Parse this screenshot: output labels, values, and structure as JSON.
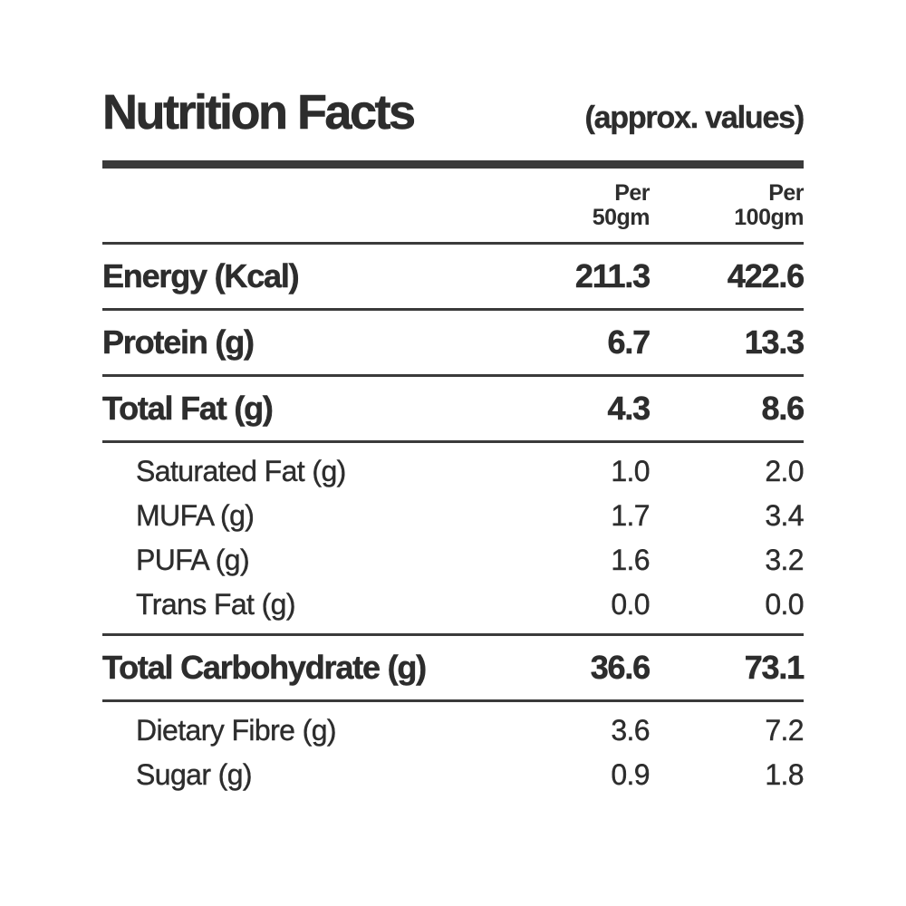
{
  "header": {
    "title": "Nutrition Facts",
    "subtitle": "(approx. values)"
  },
  "table": {
    "columns": [
      {
        "line1": "Per",
        "line2": "50gm"
      },
      {
        "line1": "Per",
        "line2": "100gm"
      }
    ],
    "rows": [
      {
        "label": "Energy (Kcal)",
        "per50": "211.3",
        "per100": "422.6",
        "style": "main",
        "rule_after": true
      },
      {
        "label": "Protein (g)",
        "per50": "6.7",
        "per100": "13.3",
        "style": "main",
        "rule_after": true
      },
      {
        "label": "Total Fat (g)",
        "per50": "4.3",
        "per100": "8.6",
        "style": "main",
        "rule_after": true
      },
      {
        "label": "Saturated Fat (g)",
        "per50": "1.0",
        "per100": "2.0",
        "style": "sub",
        "rule_after": false
      },
      {
        "label": "MUFA (g)",
        "per50": "1.7",
        "per100": "3.4",
        "style": "sub",
        "rule_after": false
      },
      {
        "label": "PUFA (g)",
        "per50": "1.6",
        "per100": "3.2",
        "style": "sub",
        "rule_after": false
      },
      {
        "label": "Trans Fat (g)",
        "per50": "0.0",
        "per100": "0.0",
        "style": "sub",
        "rule_after": true
      },
      {
        "label": "Total Carbohydrate (g)",
        "per50": "36.6",
        "per100": "73.1",
        "style": "main",
        "rule_after": true
      },
      {
        "label": "Dietary Fibre (g)",
        "per50": "3.6",
        "per100": "7.2",
        "style": "sub",
        "rule_after": false
      },
      {
        "label": "Sugar (g)",
        "per50": "0.9",
        "per100": "1.8",
        "style": "sub",
        "rule_after": false
      }
    ]
  },
  "colors": {
    "text": "#2d2d2d",
    "rule": "#3a3a3a",
    "background": "#ffffff"
  }
}
